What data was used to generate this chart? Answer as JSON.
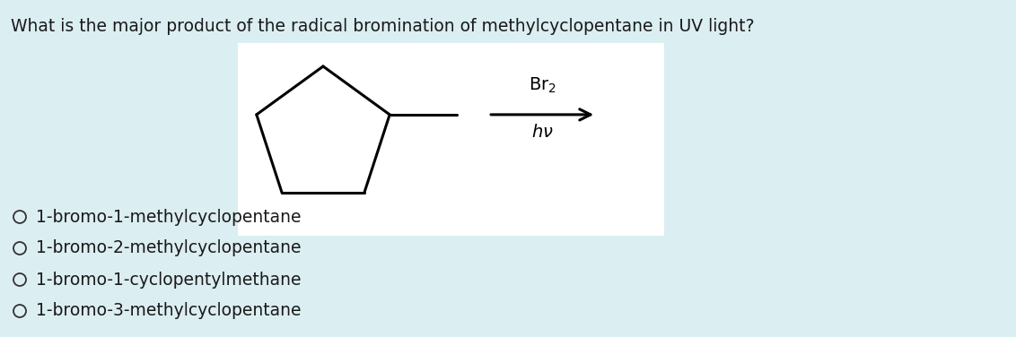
{
  "background_color": "#dbeef2",
  "question_text": "What is the major product of the radical bromination of methylcyclopentane in UV light?",
  "question_fontsize": 13.5,
  "question_color": "#1a1a1a",
  "box_color": "#ffffff",
  "reagent_above": "Br₂",
  "reagent_below": "hν",
  "options": [
    "1-bromo-1-methylcyclopentane",
    "1-bromo-2-methylcyclopentane",
    "1-bromo-1-cyclopentylmethane",
    "1-bromo-3-methylcyclopentane"
  ],
  "options_fontsize": 13.5,
  "options_color": "#1a1a1a",
  "circle_color": "#333333"
}
